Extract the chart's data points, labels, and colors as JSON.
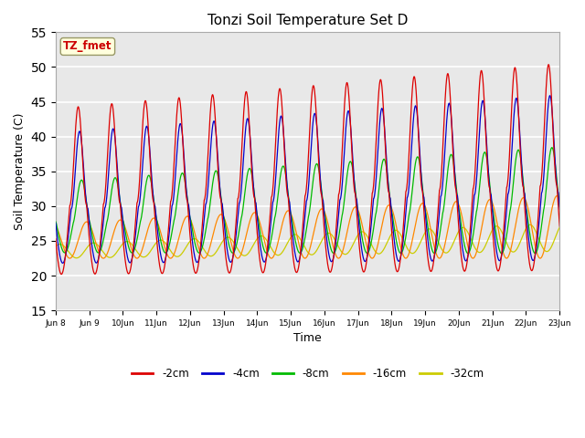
{
  "title": "Tonzi Soil Temperature Set D",
  "xlabel": "Time",
  "ylabel": "Soil Temperature (C)",
  "ylim": [
    15,
    55
  ],
  "yticks": [
    15,
    20,
    25,
    30,
    35,
    40,
    45,
    50,
    55
  ],
  "legend_labels": [
    "-2cm",
    "-4cm",
    "-8cm",
    "-16cm",
    "-32cm"
  ],
  "legend_colors": [
    "#dd0000",
    "#0000cc",
    "#00bb00",
    "#ff8800",
    "#cccc00"
  ],
  "label_text": "TZ_fmet",
  "label_color": "#cc0000",
  "label_bg": "#ffffdd",
  "background_color": "#e8e8e8",
  "n_days": 15,
  "start_day": 8,
  "samples_per_day": 288
}
